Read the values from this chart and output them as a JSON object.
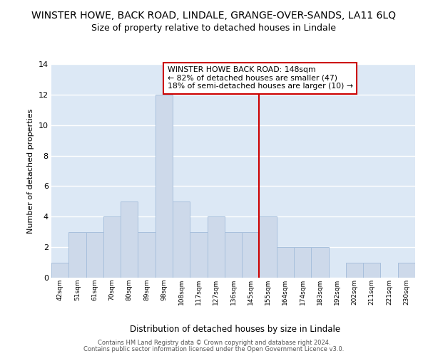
{
  "title": "WINSTER HOWE, BACK ROAD, LINDALE, GRANGE-OVER-SANDS, LA11 6LQ",
  "subtitle": "Size of property relative to detached houses in Lindale",
  "xlabel": "Distribution of detached houses by size in Lindale",
  "ylabel": "Number of detached properties",
  "categories": [
    "42sqm",
    "51sqm",
    "61sqm",
    "70sqm",
    "80sqm",
    "89sqm",
    "98sqm",
    "108sqm",
    "117sqm",
    "127sqm",
    "136sqm",
    "145sqm",
    "155sqm",
    "164sqm",
    "174sqm",
    "183sqm",
    "192sqm",
    "202sqm",
    "211sqm",
    "221sqm",
    "230sqm"
  ],
  "values": [
    1,
    3,
    3,
    4,
    5,
    3,
    12,
    5,
    3,
    4,
    3,
    3,
    4,
    2,
    2,
    2,
    0,
    1,
    1,
    0,
    1
  ],
  "bar_color": "#cdd9ea",
  "bar_edgecolor": "#a8c0dc",
  "plot_bg_color": "#dce8f5",
  "fig_bg_color": "#ffffff",
  "grid_color": "#ffffff",
  "red_line_index": 12,
  "annotation_box_text": "WINSTER HOWE BACK ROAD: 148sqm\n← 82% of detached houses are smaller (47)\n18% of semi-detached houses are larger (10) →",
  "annotation_box_color": "#cc0000",
  "ylim": [
    0,
    14
  ],
  "yticks": [
    0,
    2,
    4,
    6,
    8,
    10,
    12,
    14
  ],
  "title_fontsize": 10,
  "subtitle_fontsize": 9,
  "footer_line1": "Contains HM Land Registry data © Crown copyright and database right 2024.",
  "footer_line2": "Contains public sector information licensed under the Open Government Licence v3.0."
}
